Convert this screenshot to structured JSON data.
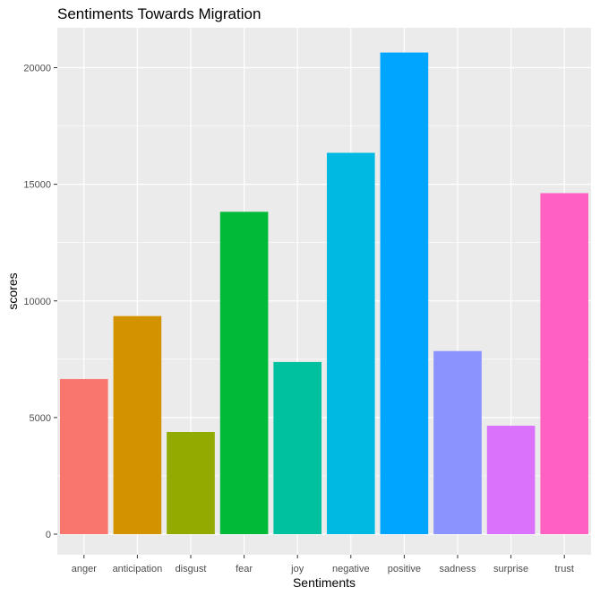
{
  "chart_data": {
    "type": "bar",
    "title": "Sentiments Towards Migration",
    "xlabel": "Sentiments",
    "ylabel": "scores",
    "categories": [
      "anger",
      "anticipation",
      "disgust",
      "fear",
      "joy",
      "negative",
      "positive",
      "sadness",
      "surprise",
      "trust"
    ],
    "values": [
      6650,
      9350,
      4380,
      13820,
      7380,
      16350,
      20650,
      7850,
      4650,
      14620
    ],
    "colors": [
      "#F8766D",
      "#D39200",
      "#93AA00",
      "#00BA38",
      "#00C19F",
      "#00B9E3",
      "#00A5FF",
      "#8B93FF",
      "#DB72FB",
      "#FF61C3"
    ],
    "y_ticks": [
      0,
      5000,
      10000,
      15000,
      20000
    ],
    "ylim": [
      0,
      21700
    ],
    "grid": true,
    "legend": "none",
    "panel_background": "#EBEBEB",
    "grid_color": "#FFFFFF"
  }
}
